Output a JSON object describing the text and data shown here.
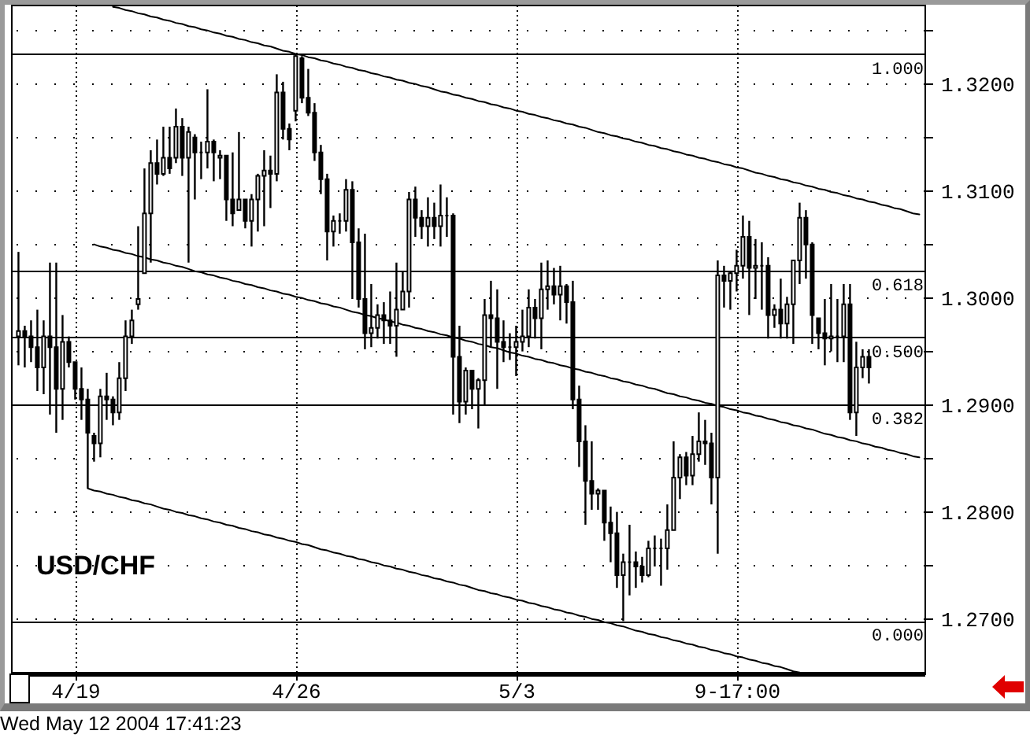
{
  "chart_data": {
    "type": "candlestick",
    "title": "USD/CHF",
    "annotations": [
      "Wed May 12 2004 17:41:23"
    ],
    "categories": [
      null,
      null,
      null,
      null,
      null,
      null,
      null,
      null,
      null,
      "4/19",
      null,
      null,
      null,
      null,
      null,
      null,
      null,
      null,
      null,
      null,
      null,
      null,
      null,
      null,
      null,
      null,
      null,
      null,
      null,
      null,
      null,
      null,
      null,
      null,
      null,
      null,
      null,
      null,
      null,
      null,
      null,
      null,
      null,
      null,
      "4/26",
      null,
      null,
      null,
      null,
      null,
      null,
      null,
      null,
      null,
      null,
      null,
      null,
      null,
      null,
      null,
      null,
      null,
      null,
      null,
      null,
      null,
      null,
      null,
      null,
      null,
      null,
      null,
      null,
      null,
      null,
      null,
      null,
      null,
      null,
      "5/3",
      null,
      null,
      null,
      null,
      null,
      null,
      null,
      null,
      null,
      null,
      null,
      null,
      null,
      null,
      null,
      null,
      null,
      null,
      null,
      null,
      null,
      null,
      null,
      null,
      null,
      null,
      null,
      null,
      null,
      null,
      null,
      null,
      null,
      null,
      "9-17:00",
      null,
      null,
      null,
      null,
      null,
      null,
      null,
      null,
      null,
      null,
      null,
      null,
      null,
      null,
      null,
      null,
      null,
      null,
      null,
      null,
      null,
      null,
      null,
      null,
      null,
      null,
      null,
      null,
      null
    ],
    "ylim": [
      1.2649,
      1.3274
    ],
    "yticks": [
      {
        "value": 1.27,
        "label": "1.2700"
      },
      {
        "value": 1.275,
        "label": null
      },
      {
        "value": 1.28,
        "label": "1.2800"
      },
      {
        "value": 1.285,
        "label": null
      },
      {
        "value": 1.29,
        "label": "1.2900"
      },
      {
        "value": 1.295,
        "label": null
      },
      {
        "value": 1.3,
        "label": "1.3000"
      },
      {
        "value": 1.305,
        "label": null
      },
      {
        "value": 1.31,
        "label": "1.3100"
      },
      {
        "value": 1.315,
        "label": null
      },
      {
        "value": 1.32,
        "label": "1.3200"
      },
      {
        "value": 1.325,
        "label": null
      }
    ],
    "y2lim": [
      -0.0925,
      1.0868
    ],
    "y2ticks": [
      {
        "value": 0,
        "label": "0.000"
      },
      {
        "value": 0.382,
        "label": "0.382"
      },
      {
        "value": 0.5,
        "label": "0.500"
      },
      {
        "value": 0.618,
        "label": "0.618"
      },
      {
        "value": 1,
        "label": "1.000"
      }
    ],
    "grid": true,
    "series": [
      {
        "type": "line",
        "color": "#000000",
        "values": [
          null,
          null,
          null,
          null,
          null,
          null,
          null,
          null,
          null,
          null,
          null,
          null,
          null,
          null,
          null,
          1.3272,
          1.3271,
          1.3269,
          1.3268,
          1.3266,
          1.3265,
          1.3263,
          1.3262,
          1.326,
          1.3259,
          1.3257,
          1.3256,
          1.3254,
          1.3253,
          1.3251,
          1.325,
          1.3248,
          1.3247,
          1.3245,
          1.3244,
          1.3242,
          1.3241,
          1.3239,
          1.3238,
          1.3236,
          1.3235,
          1.3233,
          1.3231,
          1.323,
          1.3228,
          1.3227,
          1.3225,
          1.3224,
          1.3222,
          1.3221,
          1.3219,
          1.3218,
          1.3216,
          1.3215,
          1.3213,
          1.3212,
          1.321,
          1.3209,
          1.3207,
          1.3206,
          1.3204,
          1.3203,
          1.3201,
          1.32,
          1.3198,
          1.3197,
          1.3195,
          1.3193,
          1.3192,
          1.319,
          1.3189,
          1.3187,
          1.3186,
          1.3184,
          1.3183,
          1.3181,
          1.318,
          1.3178,
          1.3177,
          1.3175,
          1.3174,
          1.3172,
          1.3171,
          1.3169,
          1.3168,
          1.3166,
          1.3165,
          1.3163,
          1.3162,
          1.316,
          1.3159,
          1.3157,
          1.3155,
          1.3154,
          1.3152,
          1.3151,
          1.3149,
          1.3148,
          1.3146,
          1.3145,
          1.3143,
          1.3142,
          1.314,
          1.3139,
          1.3137,
          1.3136,
          1.3134,
          1.3133,
          1.3131,
          1.313,
          1.3128,
          1.3127,
          1.3125,
          1.3124,
          1.3122,
          1.3121,
          1.3119,
          1.3117,
          1.3116,
          1.3114,
          1.3113,
          1.3111,
          1.311,
          1.3108,
          1.3107,
          1.3105,
          1.3104,
          1.3102,
          1.3101,
          1.3099,
          1.3098,
          1.3096,
          1.3095,
          1.3093,
          1.3092,
          1.309,
          1.3089,
          1.3087,
          1.3086,
          1.3084,
          1.3083,
          1.3081,
          1.3079,
          1.3078
        ]
      },
      {
        "type": "line",
        "color": "#000000",
        "values": [
          null,
          null,
          null,
          null,
          null,
          null,
          null,
          null,
          null,
          null,
          null,
          null,
          1.305,
          1.3048,
          1.3047,
          1.3045,
          1.3044,
          1.3042,
          1.3041,
          1.3039,
          1.3038,
          1.3036,
          1.3035,
          1.3033,
          1.3032,
          1.303,
          1.3029,
          1.3027,
          1.3025,
          1.3024,
          1.3022,
          1.3021,
          1.3019,
          1.3018,
          1.3016,
          1.3015,
          1.3013,
          1.3012,
          1.301,
          1.3009,
          1.3007,
          1.3006,
          1.3004,
          1.3003,
          1.3001,
          1.3,
          1.2998,
          1.2997,
          1.2995,
          1.2994,
          1.2992,
          1.2991,
          1.2989,
          1.2987,
          1.2986,
          1.2984,
          1.2983,
          1.2981,
          1.298,
          1.2978,
          1.2977,
          1.2975,
          1.2974,
          1.2972,
          1.2971,
          1.2969,
          1.2968,
          1.2966,
          1.2965,
          1.2963,
          1.2962,
          1.296,
          1.2959,
          1.2957,
          1.2956,
          1.2954,
          1.2953,
          1.2951,
          1.2949,
          1.2948,
          1.2946,
          1.2945,
          1.2943,
          1.2942,
          1.294,
          1.2939,
          1.2937,
          1.2936,
          1.2934,
          1.2933,
          1.2931,
          1.293,
          1.2928,
          1.2927,
          1.2925,
          1.2924,
          1.2922,
          1.2921,
          1.2919,
          1.2918,
          1.2916,
          1.2915,
          1.2913,
          1.2911,
          1.291,
          1.2908,
          1.2907,
          1.2905,
          1.2904,
          1.2902,
          1.2901,
          1.2899,
          1.2898,
          1.2896,
          1.2895,
          1.2893,
          1.2892,
          1.289,
          1.2889,
          1.2887,
          1.2886,
          1.2884,
          1.2883,
          1.2881,
          1.288,
          1.2878,
          1.2877,
          1.2875,
          1.2873,
          1.2872,
          1.287,
          1.2869,
          1.2867,
          1.2866,
          1.2864,
          1.2863,
          1.2861,
          1.286,
          1.2858,
          1.2857,
          1.2855,
          1.2854,
          1.2852,
          1.2851
        ]
      },
      {
        "type": "line",
        "color": "#000000",
        "values": [
          null,
          null,
          null,
          null,
          null,
          null,
          null,
          null,
          null,
          null,
          null,
          1.2822,
          1.282,
          1.2819,
          1.2817,
          1.2816,
          1.2814,
          1.2813,
          1.2811,
          1.281,
          1.2808,
          1.2807,
          1.2805,
          1.2803,
          1.2802,
          1.28,
          1.2799,
          1.2797,
          1.2796,
          1.2794,
          1.2793,
          1.2791,
          1.279,
          1.2788,
          1.2787,
          1.2785,
          1.2784,
          1.2782,
          1.2781,
          1.2779,
          1.2778,
          1.2776,
          1.2775,
          1.2773,
          1.2772,
          1.277,
          1.2769,
          1.2767,
          1.2765,
          1.2764,
          1.2762,
          1.2761,
          1.2759,
          1.2758,
          1.2756,
          1.2755,
          1.2753,
          1.2752,
          1.275,
          1.2749,
          1.2747,
          1.2746,
          1.2744,
          1.2743,
          1.2741,
          1.274,
          1.2738,
          1.2737,
          1.2735,
          1.2734,
          1.2732,
          1.2731,
          1.2729,
          1.2727,
          1.2726,
          1.2724,
          1.2723,
          1.2721,
          1.272,
          1.2718,
          1.2717,
          1.2715,
          1.2714,
          1.2712,
          1.2711,
          1.2709,
          1.2708,
          1.2706,
          1.2705,
          1.2703,
          1.2702,
          1.27,
          1.2699,
          1.2697,
          1.2696,
          1.2694,
          1.2693,
          1.2691,
          1.2689,
          1.2688,
          1.2686,
          1.2685,
          1.2683,
          1.2682,
          1.268,
          1.2679,
          1.2677,
          1.2676,
          1.2674,
          1.2673,
          1.2671,
          1.267,
          1.2668,
          1.2667,
          1.2665,
          1.2664,
          1.2662,
          1.2661,
          1.2659,
          1.2658,
          1.2656,
          1.2655,
          1.2653,
          1.2651,
          1.265,
          null,
          null,
          null,
          null,
          null,
          null,
          null,
          null,
          null,
          null,
          null,
          null,
          null,
          null,
          null,
          null,
          null,
          null,
          null
        ]
      },
      {
        "color": "#000000",
        "ohlc": [
          [
            1.2964,
            1.3043,
            1.2937,
            1.2969
          ],
          [
            1.2969,
            1.2974,
            1.2935,
            1.2964
          ],
          [
            1.2964,
            1.2979,
            1.294,
            1.2954
          ],
          [
            1.2954,
            1.2989,
            1.2913,
            1.2935
          ],
          [
            1.2935,
            1.2979,
            1.291,
            1.2964
          ],
          [
            1.2964,
            1.3033,
            1.2891,
            1.2954
          ],
          [
            1.2954,
            1.3033,
            1.2874,
            1.2915
          ],
          [
            1.2915,
            1.2984,
            1.2886,
            1.2959
          ],
          [
            1.2959,
            1.2964,
            1.2935,
            1.294
          ],
          [
            1.294,
            1.294,
            1.2905,
            1.2915
          ],
          [
            1.2915,
            1.2935,
            1.2886,
            1.2905
          ],
          [
            1.2905,
            1.2915,
            1.2822,
            1.2874
          ],
          [
            1.2871,
            1.2874,
            1.2847,
            1.2864
          ],
          [
            1.2864,
            1.2915,
            1.2851,
            1.2908
          ],
          [
            1.2908,
            1.293,
            1.2886,
            1.2905
          ],
          [
            1.2905,
            1.2908,
            1.2881,
            1.2893
          ],
          [
            1.2893,
            1.294,
            1.2886,
            1.2925
          ],
          [
            1.2925,
            1.2979,
            1.2913,
            1.2964
          ],
          [
            1.2964,
            1.2989,
            1.2957,
            1.2979
          ],
          [
            1.2994,
            1.3067,
            1.2989,
            1.2999
          ],
          [
            1.3023,
            1.3121,
            1.3023,
            1.3079
          ],
          [
            1.3079,
            1.3138,
            1.3033,
            1.3126
          ],
          [
            1.3126,
            1.3148,
            1.3106,
            1.3116
          ],
          [
            1.3116,
            1.316,
            1.3114,
            1.3131
          ],
          [
            1.3131,
            1.316,
            1.3116,
            1.3121
          ],
          [
            1.3131,
            1.3177,
            1.3126,
            1.316
          ],
          [
            1.316,
            1.3168,
            1.3114,
            1.3131
          ],
          [
            1.3131,
            1.316,
            1.3033,
            1.3155
          ],
          [
            1.315,
            1.3153,
            1.3092,
            1.3136
          ],
          [
            1.3136,
            1.3146,
            1.3111,
            1.3136
          ],
          [
            1.3136,
            1.3195,
            1.3121,
            1.3146
          ],
          [
            1.3146,
            1.3148,
            1.3109,
            1.3136
          ],
          [
            1.3131,
            1.3138,
            1.3111,
            1.3133
          ],
          [
            1.3133,
            1.3133,
            1.3072,
            1.3092
          ],
          [
            1.3092,
            1.3136,
            1.3067,
            1.3079
          ],
          [
            1.3082,
            1.3155,
            1.3082,
            1.3092
          ],
          [
            1.3092,
            1.3092,
            1.3065,
            1.3072
          ],
          [
            1.3072,
            1.3097,
            1.3048,
            1.3092
          ],
          [
            1.3092,
            1.3116,
            1.3062,
            1.3114
          ],
          [
            1.3114,
            1.3138,
            1.3067,
            1.3119
          ],
          [
            1.3119,
            1.3133,
            1.3084,
            1.3116
          ],
          [
            1.3116,
            1.3209,
            1.3109,
            1.3192
          ],
          [
            1.3192,
            1.3202,
            1.3148,
            1.3158
          ],
          [
            1.3158,
            1.3163,
            1.3138,
            1.3148
          ],
          [
            1.3175,
            1.3228,
            1.3165,
            1.3226
          ],
          [
            1.3224,
            1.3226,
            1.3182,
            1.3187
          ],
          [
            1.3187,
            1.3214,
            1.317,
            1.3173
          ],
          [
            1.3173,
            1.3182,
            1.3128,
            1.3136
          ],
          [
            1.3136,
            1.3143,
            1.3097,
            1.3111
          ],
          [
            1.3111,
            1.3116,
            1.3035,
            1.3062
          ],
          [
            1.3062,
            1.3077,
            1.3048,
            1.3072
          ],
          [
            1.3072,
            1.3079,
            1.306,
            1.3072
          ],
          [
            1.3072,
            1.3111,
            1.3062,
            1.3101
          ],
          [
            1.3101,
            1.3109,
            1.2999,
            1.3052
          ],
          [
            1.3052,
            1.3065,
            1.2991,
            1.2999
          ],
          [
            1.2999,
            1.306,
            1.2952,
            1.2967
          ],
          [
            1.2967,
            1.3013,
            1.2954,
            1.2972
          ],
          [
            1.2972,
            1.2994,
            1.2962,
            1.2984
          ],
          [
            1.2984,
            1.2996,
            1.2957,
            1.2979
          ],
          [
            1.2979,
            1.3006,
            1.2957,
            1.2974
          ],
          [
            1.2974,
            1.3033,
            1.2945,
            1.2989
          ],
          [
            1.2989,
            1.3025,
            1.2989,
            1.3006
          ],
          [
            1.3006,
            1.3099,
            1.2991,
            1.3092
          ],
          [
            1.3092,
            1.3104,
            1.3057,
            1.3075
          ],
          [
            1.3075,
            1.3082,
            1.3055,
            1.3067
          ],
          [
            1.3067,
            1.3094,
            1.3048,
            1.3075
          ],
          [
            1.3075,
            1.3089,
            1.3055,
            1.3067
          ],
          [
            1.3067,
            1.3106,
            1.3048,
            1.3077
          ],
          [
            1.3077,
            1.3094,
            1.3057,
            1.3077
          ],
          [
            1.3077,
            1.3079,
            1.2891,
            1.2945
          ],
          [
            1.2945,
            1.2974,
            1.2883,
            1.2903
          ],
          [
            1.2903,
            1.2935,
            1.2891,
            1.2932
          ],
          [
            1.2932,
            1.2932,
            1.2896,
            1.2915
          ],
          [
            1.2915,
            1.2925,
            1.2878,
            1.2923
          ],
          [
            1.2923,
            1.2999,
            1.29,
            1.2984
          ],
          [
            1.2984,
            1.3016,
            1.2954,
            1.2981
          ],
          [
            1.2981,
            1.3008,
            1.2915,
            1.2959
          ],
          [
            1.2959,
            1.2979,
            1.294,
            1.2954
          ],
          [
            1.2954,
            1.2967,
            1.2942,
            1.2954
          ],
          [
            1.2954,
            1.2974,
            1.2927,
            1.2959
          ],
          [
            1.2959,
            1.2989,
            1.295,
            1.2964
          ],
          [
            1.2964,
            1.3008,
            1.2954,
            1.2991
          ],
          [
            1.2991,
            1.2999,
            1.2962,
            1.2981
          ],
          [
            1.2981,
            1.3033,
            1.2952,
            1.3008
          ],
          [
            1.3008,
            1.3035,
            1.2989,
            1.3011
          ],
          [
            1.3011,
            1.3028,
            1.2994,
            1.3003
          ],
          [
            1.3003,
            1.303,
            1.2979,
            1.3011
          ],
          [
            1.3011,
            1.3013,
            1.2976,
            1.2996
          ],
          [
            1.2996,
            1.3016,
            1.2896,
            1.2905
          ],
          [
            1.2905,
            1.2918,
            1.2842,
            1.2866
          ],
          [
            1.2866,
            1.2881,
            1.2788,
            1.2829
          ],
          [
            1.2829,
            1.2866,
            1.2802,
            1.2817
          ],
          [
            1.2817,
            1.2822,
            1.2802,
            1.282
          ],
          [
            1.282,
            1.282,
            1.2773,
            1.279
          ],
          [
            1.279,
            1.2805,
            1.2753,
            1.278
          ],
          [
            1.278,
            1.28,
            1.2729,
            1.2741
          ],
          [
            1.2741,
            1.2761,
            1.2698,
            1.2753
          ],
          [
            1.2753,
            1.2788,
            1.2722,
            1.2753
          ],
          [
            1.2753,
            1.2763,
            1.2729,
            1.2749
          ],
          [
            1.2749,
            1.2758,
            1.2734,
            1.2741
          ],
          [
            1.2741,
            1.2773,
            1.2739,
            1.2766
          ],
          [
            1.2766,
            1.2778,
            1.2749,
            1.2766
          ],
          [
            1.2766,
            1.2775,
            1.2731,
            1.2766
          ],
          [
            1.2766,
            1.2807,
            1.2746,
            1.2783
          ],
          [
            1.2783,
            1.2866,
            1.2783,
            1.2832
          ],
          [
            1.2832,
            1.2854,
            1.2812,
            1.2851
          ],
          [
            1.2851,
            1.2856,
            1.2825,
            1.2834
          ],
          [
            1.2834,
            1.2871,
            1.2825,
            1.2854
          ],
          [
            1.2854,
            1.2893,
            1.2847,
            1.2866
          ],
          [
            1.2866,
            1.2886,
            1.2844,
            1.2864
          ],
          [
            1.2864,
            1.2874,
            1.2807,
            1.2832
          ],
          [
            1.2832,
            1.3035,
            1.2761,
            1.3021
          ],
          [
            1.3021,
            1.303,
            1.2991,
            1.3016
          ],
          [
            1.3016,
            1.3025,
            1.2989,
            1.3023
          ],
          [
            1.3023,
            1.3045,
            1.3006,
            1.303
          ],
          [
            1.303,
            1.3077,
            1.3018,
            1.3057
          ],
          [
            1.3057,
            1.3072,
            1.2984,
            1.3028
          ],
          [
            1.3028,
            1.3055,
            1.2999,
            1.303
          ],
          [
            1.303,
            1.3052,
            1.2989,
            1.303
          ],
          [
            1.303,
            1.3038,
            1.2962,
            1.2984
          ],
          [
            1.2984,
            1.2994,
            1.2972,
            1.2989
          ],
          [
            1.2989,
            1.3018,
            1.2962,
            1.2976
          ],
          [
            1.2976,
            1.3001,
            1.2962,
            1.2994
          ],
          [
            1.2994,
            1.3035,
            1.2957,
            1.3035
          ],
          [
            1.3035,
            1.3089,
            1.3013,
            1.3075
          ],
          [
            1.3075,
            1.3082,
            1.3018,
            1.305
          ],
          [
            1.305,
            1.3052,
            1.2957,
            1.2984
          ],
          [
            1.2981,
            1.2981,
            1.2952,
            1.2967
          ],
          [
            1.2967,
            1.2999,
            1.2937,
            1.2962
          ],
          [
            1.2962,
            1.3013,
            1.295,
            1.2964
          ],
          [
            1.2964,
            1.2999,
            1.294,
            1.2964
          ],
          [
            1.2964,
            1.3013,
            1.294,
            1.2994
          ],
          [
            1.2994,
            1.3013,
            1.2886,
            1.2893
          ],
          [
            1.2893,
            1.2959,
            1.2871,
            1.2935
          ],
          [
            1.2935,
            1.2952,
            1.2925,
            1.2945
          ],
          [
            1.2945,
            1.2952,
            1.292,
            1.2935
          ],
          null,
          null,
          null,
          null,
          null,
          null,
          null,
          null
        ]
      }
    ]
  }
}
